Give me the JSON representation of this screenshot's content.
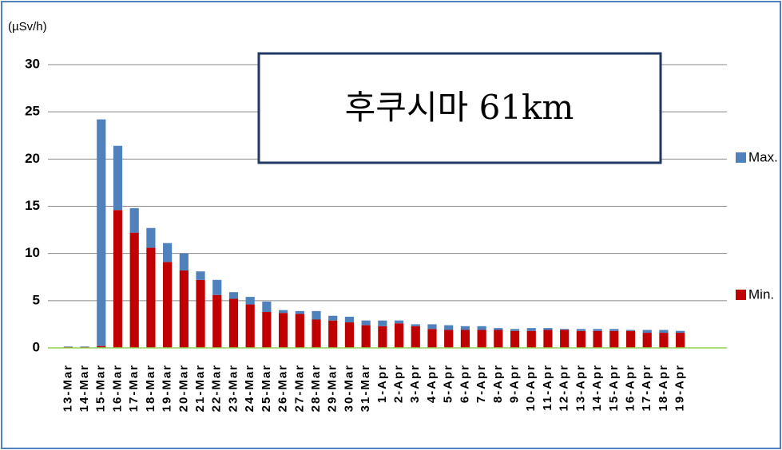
{
  "chart_data": {
    "type": "bar",
    "stacked": true,
    "y_label": "(µSv/h)",
    "annotation": "후쿠시마 61km",
    "categories": [
      "13-Mar",
      "14-Mar",
      "15-Mar",
      "16-Mar",
      "17-Mar",
      "18-Mar",
      "19-Mar",
      "20-Mar",
      "21-Mar",
      "22-Mar",
      "23-Mar",
      "24-Mar",
      "25-Mar",
      "26-Mar",
      "27-Mar",
      "28-Mar",
      "29-Mar",
      "30-Mar",
      "31-Mar",
      "1-Apr",
      "2-Apr",
      "3-Apr",
      "4-Apr",
      "5-Apr",
      "6-Apr",
      "7-Apr",
      "8-Apr",
      "9-Apr",
      "10-Apr",
      "11-Apr",
      "12-Apr",
      "13-Apr",
      "14-Apr",
      "15-Apr",
      "16-Apr",
      "17-Apr",
      "18-Apr",
      "19-Apr"
    ],
    "series": [
      {
        "name": "Min.",
        "color": "#c00000",
        "values": [
          0.1,
          0.1,
          0.2,
          14.6,
          12.2,
          10.6,
          9.1,
          8.2,
          7.2,
          5.6,
          5.2,
          4.6,
          3.8,
          3.7,
          3.6,
          3.0,
          2.9,
          2.7,
          2.4,
          2.3,
          2.6,
          2.3,
          2.0,
          1.9,
          1.9,
          1.9,
          1.9,
          1.8,
          1.8,
          1.9,
          1.9,
          1.8,
          1.8,
          1.8,
          1.8,
          1.6,
          1.6,
          1.6
        ]
      },
      {
        "name": "Max.",
        "color": "#4f81bd",
        "values": [
          0.05,
          0.05,
          24.0,
          6.8,
          2.6,
          2.1,
          2.0,
          1.8,
          0.9,
          1.6,
          0.7,
          0.8,
          1.1,
          0.3,
          0.3,
          0.9,
          0.5,
          0.6,
          0.5,
          0.6,
          0.3,
          0.2,
          0.5,
          0.5,
          0.4,
          0.4,
          0.2,
          0.2,
          0.3,
          0.2,
          0.1,
          0.2,
          0.2,
          0.2,
          0.1,
          0.3,
          0.3,
          0.2
        ]
      }
    ],
    "ylim": [
      0,
      30
    ],
    "yticks": [
      0,
      5,
      10,
      15,
      20,
      25,
      30
    ],
    "grid": true
  }
}
